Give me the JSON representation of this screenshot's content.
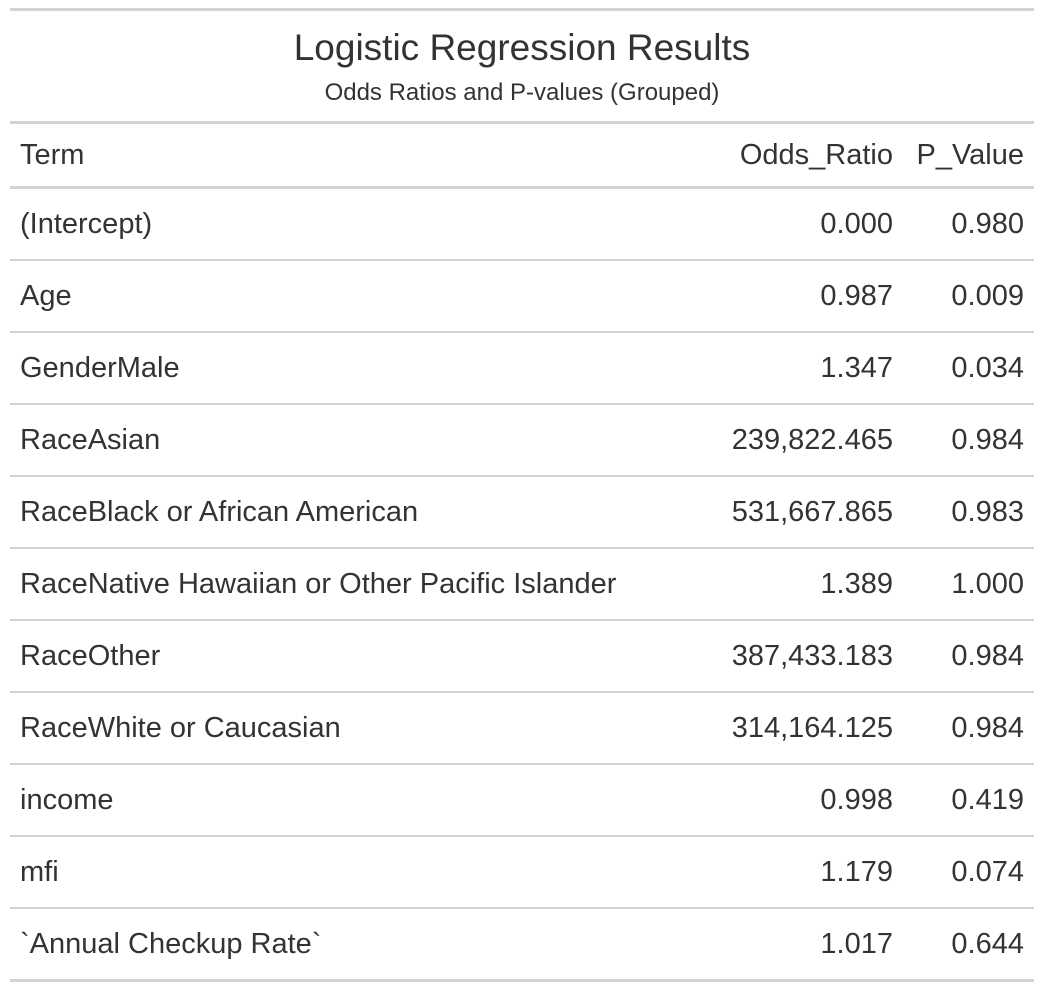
{
  "table": {
    "title": "Logistic Regression Results",
    "subtitle": "Odds Ratios and P-values (Grouped)",
    "columns": [
      "Term",
      "Odds_Ratio",
      "P_Value"
    ],
    "rows": [
      {
        "term": "(Intercept)",
        "odds_ratio": "0.000",
        "p_value": "0.980"
      },
      {
        "term": "Age",
        "odds_ratio": "0.987",
        "p_value": "0.009"
      },
      {
        "term": "GenderMale",
        "odds_ratio": "1.347",
        "p_value": "0.034"
      },
      {
        "term": "RaceAsian",
        "odds_ratio": "239,822.465",
        "p_value": "0.984"
      },
      {
        "term": "RaceBlack or African American",
        "odds_ratio": "531,667.865",
        "p_value": "0.983"
      },
      {
        "term": "RaceNative Hawaiian or Other Pacific Islander",
        "odds_ratio": "1.389",
        "p_value": "1.000"
      },
      {
        "term": "RaceOther",
        "odds_ratio": "387,433.183",
        "p_value": "0.984"
      },
      {
        "term": "RaceWhite or Caucasian",
        "odds_ratio": "314,164.125",
        "p_value": "0.984"
      },
      {
        "term": "income",
        "odds_ratio": "0.998",
        "p_value": "0.419"
      },
      {
        "term": "mfi",
        "odds_ratio": "1.179",
        "p_value": "0.074"
      },
      {
        "term": "`Annual Checkup Rate`",
        "odds_ratio": "1.017",
        "p_value": "0.644"
      }
    ]
  }
}
